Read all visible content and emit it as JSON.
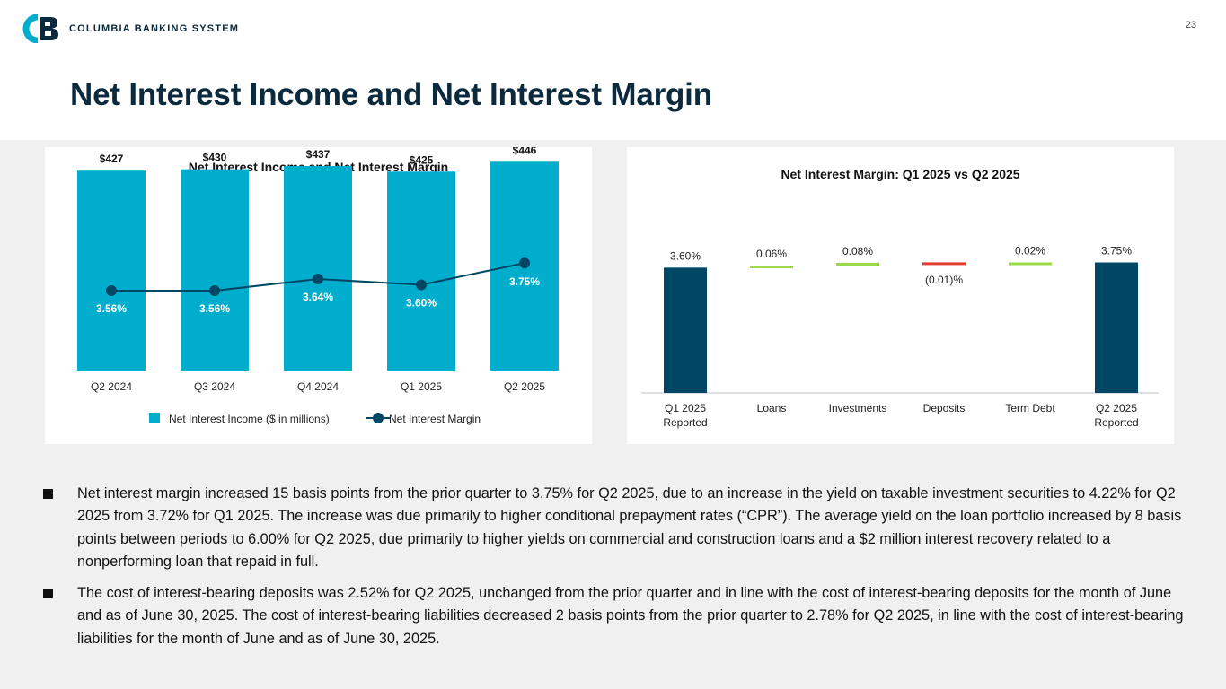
{
  "header": {
    "company": "COLUMBIA BANKING SYSTEM",
    "page_number": "23",
    "title": "Net Interest Income and Net Interest Margin"
  },
  "colors": {
    "navy": "#0b2a3d",
    "teal": "#00adcc",
    "dark_teal": "#004766",
    "green": "#9ad948",
    "red": "#e03c31"
  },
  "chart_data": [
    {
      "type": "bar",
      "title": "Net Interest Income and Net Interest Margin",
      "categories": [
        "Q2 2024",
        "Q3 2024",
        "Q4 2024",
        "Q1 2025",
        "Q2 2025"
      ],
      "series": [
        {
          "name": "Net Interest Income ($ in millions)",
          "type": "bar",
          "values": [
            427,
            430,
            437,
            425,
            446
          ],
          "labels": [
            "$427",
            "$430",
            "$437",
            "$425",
            "$446"
          ]
        },
        {
          "name": "Net Interest Margin",
          "type": "line",
          "values": [
            3.56,
            3.56,
            3.64,
            3.6,
            3.75
          ],
          "labels": [
            "3.56%",
            "3.56%",
            "3.64%",
            "3.60%",
            "3.75%"
          ]
        }
      ],
      "legend": [
        "Net Interest Income ($ in millions)",
        "Net Interest Margin"
      ],
      "legend_position": "bottom"
    },
    {
      "type": "waterfall",
      "title": "Net Interest Margin: Q1 2025 vs Q2 2025",
      "categories": [
        [
          "Q1 2025",
          "Reported"
        ],
        [
          "Loans"
        ],
        [
          "Investments"
        ],
        [
          "Deposits"
        ],
        [
          "Term Debt"
        ],
        [
          "Q2 2025",
          "Reported"
        ]
      ],
      "values": [
        3.6,
        0.06,
        0.08,
        -0.01,
        0.02,
        3.75
      ],
      "kinds": [
        "total",
        "delta",
        "delta",
        "delta",
        "delta",
        "total"
      ],
      "labels": [
        "3.60%",
        "0.06%",
        "0.08%",
        "(0.01)%",
        "0.02%",
        "3.75%"
      ]
    }
  ],
  "bullets": [
    "Net interest margin increased 15 basis points from the prior quarter to 3.75% for Q2 2025, due to an increase in the yield on taxable investment securities to 4.22% for Q2 2025 from 3.72% for Q1 2025. The increase was due primarily to higher conditional prepayment rates (“CPR”). The average yield on the loan portfolio increased by 8 basis points between periods to 6.00% for Q2 2025, due primarily to higher yields on commercial and construction loans and a $2 million interest recovery related to a nonperforming loan that repaid in full.",
    "The cost of interest-bearing deposits was 2.52% for Q2 2025, unchanged from the prior quarter and in line with the cost of interest-bearing deposits for the month of June and as of June 30, 2025. The cost of interest-bearing liabilities decreased 2 basis points from the prior quarter to 2.78% for Q2 2025, in line with the cost of interest-bearing liabilities for the month of June and as of June 30, 2025."
  ]
}
